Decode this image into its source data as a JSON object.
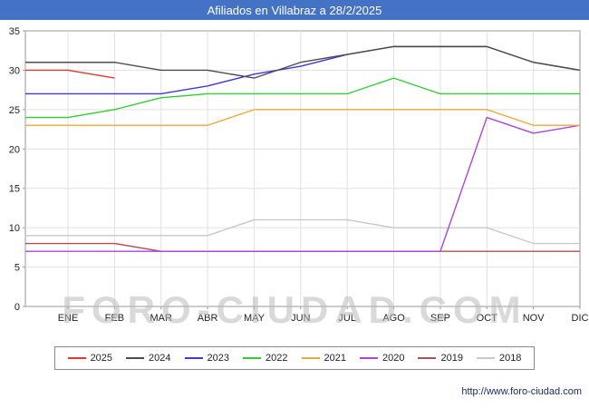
{
  "title": "Afiliados en Villabraz a 28/2/2025",
  "title_bar_color": "#4473c5",
  "watermark": "FORO-CIUDAD.COM",
  "footer_url": "http://www.foro-ciudad.com",
  "chart_data": {
    "type": "line",
    "title": "Afiliados en Villabraz a 28/2/2025",
    "categories": [
      "ENE",
      "FEB",
      "MAR",
      "ABR",
      "MAY",
      "JUN",
      "JUL",
      "AGO",
      "SEP",
      "OCT",
      "NOV",
      "DIC"
    ],
    "ylim": [
      0,
      35
    ],
    "ytick_step": 5,
    "grid": true,
    "legend_position": "bottom",
    "series": [
      {
        "name": "2025",
        "color": "#e03a2f",
        "values": [
          30,
          29,
          null,
          null,
          null,
          null,
          null,
          null,
          null,
          null,
          null,
          null
        ]
      },
      {
        "name": "2024",
        "color": "#4d4d4d",
        "values": [
          31,
          31,
          30,
          30,
          29,
          31,
          32,
          33,
          33,
          33,
          31,
          30
        ]
      },
      {
        "name": "2023",
        "color": "#3a3adf",
        "values": [
          27,
          27,
          27,
          28,
          29.5,
          30.5,
          32,
          33,
          33,
          33,
          31,
          30
        ]
      },
      {
        "name": "2022",
        "color": "#33cc33",
        "values": [
          24,
          25,
          26.5,
          27,
          27,
          27,
          27,
          29,
          27,
          27,
          27,
          27
        ]
      },
      {
        "name": "2021",
        "color": "#f0a73a",
        "values": [
          23,
          23,
          23,
          23,
          25,
          25,
          25,
          25,
          25,
          25,
          23,
          23
        ]
      },
      {
        "name": "2020",
        "color": "#aa44dd",
        "values": [
          7,
          7,
          7,
          7,
          7,
          7,
          7,
          7,
          7,
          24,
          22,
          23
        ]
      },
      {
        "name": "2019",
        "color": "#b05050",
        "values": [
          8,
          8,
          7,
          7,
          7,
          7,
          7,
          7,
          7,
          7,
          7,
          7
        ]
      },
      {
        "name": "2018",
        "color": "#c8c8c8",
        "values": [
          9,
          9,
          9,
          9,
          11,
          11,
          11,
          10,
          10,
          10,
          8,
          8
        ]
      }
    ]
  }
}
